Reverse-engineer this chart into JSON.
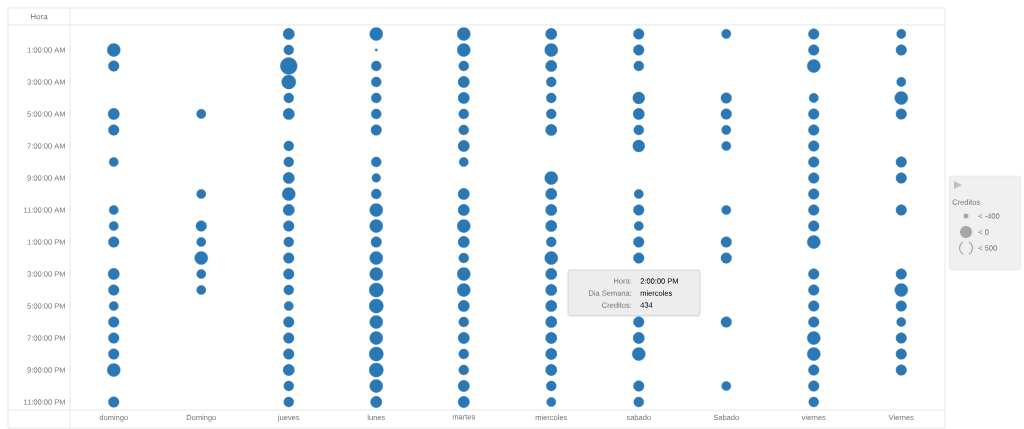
{
  "chart_data": {
    "type": "bubble",
    "ylabel": "Hora",
    "legend_title": "Creditos",
    "categories": [
      "domingo",
      "Domingo",
      "jueves",
      "lunes",
      "martes",
      "miercoles",
      "sabado",
      "Sabado",
      "viernes",
      "Viernes"
    ],
    "ylim": [
      23.5,
      -0.56
    ],
    "yticks": [
      {
        "value": 1,
        "label": "1:00:00 AM"
      },
      {
        "value": 3,
        "label": "3:00:00 AM"
      },
      {
        "value": 5,
        "label": "5:00:00 AM"
      },
      {
        "value": 7,
        "label": "7:00:00 AM"
      },
      {
        "value": 9,
        "label": "9:00:00 AM"
      },
      {
        "value": 11,
        "label": "11:00:00 AM"
      },
      {
        "value": 13,
        "label": "1:00:00 PM"
      },
      {
        "value": 15,
        "label": "3:00:00 PM"
      },
      {
        "value": 17,
        "label": "5:00:00 PM"
      },
      {
        "value": 19,
        "label": "7:00:00 PM"
      },
      {
        "value": 21,
        "label": "9:00:00 PM"
      },
      {
        "value": 23,
        "label": "11:00:00 PM"
      }
    ],
    "series": [
      {
        "color": "#2b78b5",
        "x": [
          "domingo",
          "domingo",
          "domingo",
          "domingo",
          "domingo",
          "domingo",
          "domingo",
          "domingo",
          "domingo",
          "domingo",
          "domingo",
          "domingo",
          "domingo",
          "domingo",
          "domingo",
          "domingo"
        ],
        "values": [
          1,
          2,
          5,
          6,
          8,
          11,
          12,
          13,
          15,
          16,
          17,
          18,
          19,
          20,
          21,
          23
        ],
        "sizes": [
          0.6,
          0.4,
          0.45,
          0.4,
          0.3,
          0.3,
          0.3,
          0.4,
          0.45,
          0.4,
          0.3,
          0.4,
          0.4,
          0.4,
          0.6,
          0.4
        ]
      },
      {
        "color": "#2b78b5",
        "x": [
          "Domingo",
          "Domingo",
          "Domingo",
          "Domingo",
          "Domingo",
          "Domingo",
          "Domingo"
        ],
        "values": [
          5,
          10,
          12,
          13,
          14,
          15,
          16
        ],
        "sizes": [
          0.3,
          0.3,
          0.4,
          0.3,
          0.6,
          0.3,
          0.3
        ]
      },
      {
        "color": "#2b78b5",
        "x": [
          "jueves",
          "jueves",
          "jueves",
          "jueves",
          "jueves",
          "jueves",
          "jueves",
          "jueves",
          "jueves",
          "jueves",
          "jueves",
          "jueves",
          "jueves",
          "jueves",
          "jueves",
          "jueves",
          "jueves",
          "jueves",
          "jueves",
          "jueves",
          "jueves",
          "jueves",
          "jueves"
        ],
        "values": [
          0,
          1,
          2,
          3,
          4,
          5,
          7,
          8,
          9,
          10,
          11,
          12,
          13,
          14,
          15,
          16,
          17,
          18,
          19,
          20,
          21,
          22,
          23
        ],
        "sizes": [
          0.45,
          0.35,
          1,
          0.7,
          0.35,
          0.45,
          0.35,
          0.35,
          0.45,
          0.6,
          0.45,
          0.4,
          0.35,
          0.4,
          0.4,
          0.35,
          0.3,
          0.4,
          0.4,
          0.4,
          0.45,
          0.35,
          0.35
        ]
      },
      {
        "color": "#2b78b5",
        "x": [
          "lunes",
          "lunes",
          "lunes",
          "lunes",
          "lunes",
          "lunes",
          "lunes",
          "lunes",
          "lunes",
          "lunes",
          "lunes",
          "lunes",
          "lunes",
          "lunes",
          "lunes",
          "lunes",
          "lunes",
          "lunes",
          "lunes",
          "lunes",
          "lunes",
          "lunes",
          "lunes"
        ],
        "values": [
          0,
          1,
          2,
          3,
          4,
          5,
          6,
          8,
          9,
          10,
          11,
          12,
          13,
          14,
          15,
          16,
          17,
          18,
          19,
          20,
          21,
          22,
          23
        ],
        "sizes": [
          0.6,
          0.02,
          0.35,
          0.35,
          0.35,
          0.35,
          0.4,
          0.35,
          0.27,
          0.35,
          0.6,
          0.6,
          0.4,
          0.6,
          0.6,
          0.7,
          0.7,
          0.6,
          0.6,
          0.7,
          0.7,
          0.6,
          0.45
        ]
      },
      {
        "color": "#2b78b5",
        "x": [
          "martes",
          "martes",
          "martes",
          "martes",
          "martes",
          "martes",
          "martes",
          "martes",
          "martes",
          "martes",
          "martes",
          "martes",
          "martes",
          "martes",
          "martes",
          "martes",
          "martes",
          "martes",
          "martes",
          "martes",
          "martes",
          "martes",
          "martes"
        ],
        "values": [
          0,
          1,
          2,
          3,
          4,
          5,
          6,
          7,
          8,
          10,
          11,
          12,
          13,
          14,
          15,
          16,
          17,
          18,
          19,
          20,
          21,
          22,
          23
        ],
        "sizes": [
          0.6,
          0.6,
          0.35,
          0.45,
          0.45,
          0.35,
          0.35,
          0.45,
          0.3,
          0.45,
          0.45,
          0.6,
          0.45,
          0.35,
          0.6,
          0.6,
          0.45,
          0.35,
          0.45,
          0.35,
          0.35,
          0.45,
          0.45
        ]
      },
      {
        "color": "#2b78b5",
        "x": [
          "miercoles",
          "miercoles",
          "miercoles",
          "miercoles",
          "miercoles",
          "miercoles",
          "miercoles",
          "miercoles",
          "miercoles",
          "miercoles",
          "miercoles",
          "miercoles",
          "miercoles",
          "miercoles",
          "miercoles",
          "miercoles",
          "miercoles",
          "miercoles",
          "miercoles",
          "miercoles",
          "miercoles",
          "miercoles"
        ],
        "values": [
          0,
          1,
          2,
          3,
          4,
          5,
          6,
          9,
          10,
          11,
          12,
          13,
          14,
          15,
          16,
          17,
          18,
          19,
          20,
          21,
          22,
          23
        ],
        "sizes": [
          0.45,
          0.6,
          0.45,
          0.35,
          0.35,
          0.35,
          0.45,
          0.6,
          0.45,
          0.45,
          0.45,
          0.35,
          0.6,
          0.45,
          0.45,
          0.45,
          0.45,
          0.45,
          0.45,
          0.45,
          0.35,
          0.3
        ]
      },
      {
        "color": "#2b78b5",
        "x": [
          "sabado",
          "sabado",
          "sabado",
          "sabado",
          "sabado",
          "sabado",
          "sabado",
          "sabado",
          "sabado",
          "sabado",
          "sabado",
          "sabado",
          "sabado",
          "sabado",
          "sabado",
          "sabado",
          "sabado"
        ],
        "values": [
          0,
          1,
          2,
          4,
          5,
          6,
          7,
          10,
          11,
          12,
          13,
          14,
          18,
          19,
          20,
          22,
          23
        ],
        "sizes": [
          0.4,
          0.4,
          0.35,
          0.5,
          0.45,
          0.35,
          0.5,
          0.3,
          0.4,
          0.3,
          0.4,
          0.4,
          0.4,
          0.45,
          0.6,
          0.4,
          0.35
        ]
      },
      {
        "color": "#2b78b5",
        "x": [
          "Sabado",
          "Sabado",
          "Sabado",
          "Sabado",
          "Sabado",
          "Sabado",
          "Sabado",
          "Sabado",
          "Sabado",
          "Sabado"
        ],
        "values": [
          0,
          4,
          5,
          6,
          7,
          11,
          13,
          14,
          18,
          22
        ],
        "sizes": [
          0.3,
          0.4,
          0.4,
          0.3,
          0.3,
          0.3,
          0.4,
          0.4,
          0.4,
          0.3
        ]
      },
      {
        "color": "#2b78b5",
        "x": [
          "viernes",
          "viernes",
          "viernes",
          "viernes",
          "viernes",
          "viernes",
          "viernes",
          "viernes",
          "viernes",
          "viernes",
          "viernes",
          "viernes",
          "viernes",
          "viernes",
          "viernes",
          "viernes",
          "viernes",
          "viernes",
          "viernes",
          "viernes",
          "viernes",
          "viernes"
        ],
        "values": [
          0,
          1,
          2,
          4,
          5,
          6,
          7,
          8,
          9,
          10,
          11,
          12,
          13,
          15,
          16,
          17,
          18,
          19,
          20,
          21,
          22,
          23
        ],
        "sizes": [
          0.4,
          0.4,
          0.6,
          0.3,
          0.4,
          0.4,
          0.4,
          0.4,
          0.4,
          0.4,
          0.4,
          0.4,
          0.6,
          0.4,
          0.4,
          0.4,
          0.4,
          0.6,
          0.6,
          0.4,
          0.4,
          0.35
        ]
      },
      {
        "color": "#2b78b5",
        "x": [
          "Viernes",
          "Viernes",
          "Viernes",
          "Viernes",
          "Viernes",
          "Viernes",
          "Viernes",
          "Viernes",
          "Viernes",
          "Viernes",
          "Viernes",
          "Viernes",
          "Viernes",
          "Viernes",
          "Viernes"
        ],
        "values": [
          0,
          1,
          3,
          4,
          5,
          8,
          9,
          11,
          15,
          16,
          17,
          18,
          19,
          20,
          21
        ],
        "sizes": [
          0.3,
          0.4,
          0.3,
          0.6,
          0.4,
          0.4,
          0.4,
          0.4,
          0.4,
          0.6,
          0.4,
          0.3,
          0.4,
          0.4,
          0.4
        ]
      }
    ],
    "annotations": [
      "Hora:",
      "2:00:00 PM",
      "Dia Semana:",
      "miercoles",
      "Creditos:",
      "434",
      "<  -400",
      "<  0",
      "<  500"
    ]
  }
}
